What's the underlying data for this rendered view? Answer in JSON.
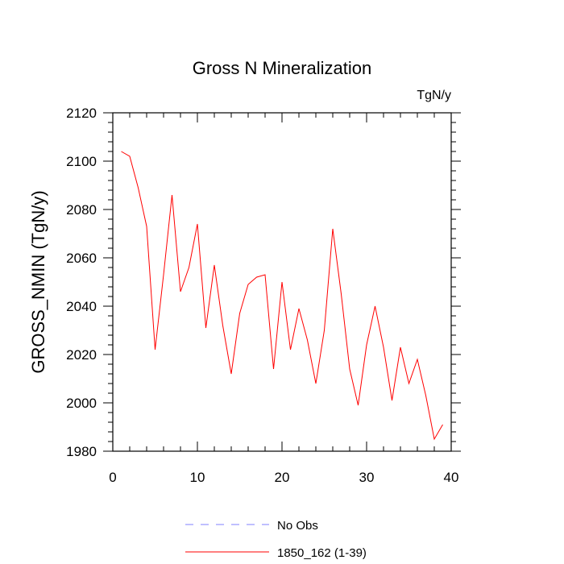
{
  "chart_data": {
    "type": "line",
    "title": "Gross N Mineralization",
    "units_label": "TgN/y",
    "xlabel": "",
    "ylabel": "GROSS_NMIN  (TgN/y)",
    "xlim": [
      0,
      40
    ],
    "ylim": [
      1980,
      2120
    ],
    "xticks": [
      0,
      10,
      20,
      30,
      40
    ],
    "yticks": [
      1980,
      2000,
      2020,
      2040,
      2060,
      2080,
      2100,
      2120
    ],
    "series": [
      {
        "name": "1850_162 (1-39)",
        "color": "#ff0000",
        "dash": "solid",
        "x": [
          1,
          2,
          3,
          4,
          5,
          6,
          7,
          8,
          9,
          10,
          11,
          12,
          13,
          14,
          15,
          16,
          17,
          18,
          19,
          20,
          21,
          22,
          23,
          24,
          25,
          26,
          27,
          28,
          29,
          30,
          31,
          32,
          33,
          34,
          35,
          36,
          37,
          38,
          39
        ],
        "values": [
          2104,
          2102,
          2089,
          2073,
          2022,
          2053,
          2086,
          2046,
          2056,
          2074,
          2031,
          2057,
          2032,
          2012,
          2037,
          2049,
          2052,
          2053,
          2014,
          2050,
          2022,
          2039,
          2026,
          2008,
          2030,
          2072,
          2045,
          2014,
          1999,
          2024,
          2040,
          2023,
          2001,
          2023,
          2008,
          2018,
          2003,
          1985,
          1991
        ]
      }
    ],
    "legend": [
      {
        "label": "No Obs",
        "color": "#8080ff",
        "dash": "dashed"
      },
      {
        "label": "1850_162 (1-39)",
        "color": "#ff0000",
        "dash": "solid"
      }
    ]
  }
}
